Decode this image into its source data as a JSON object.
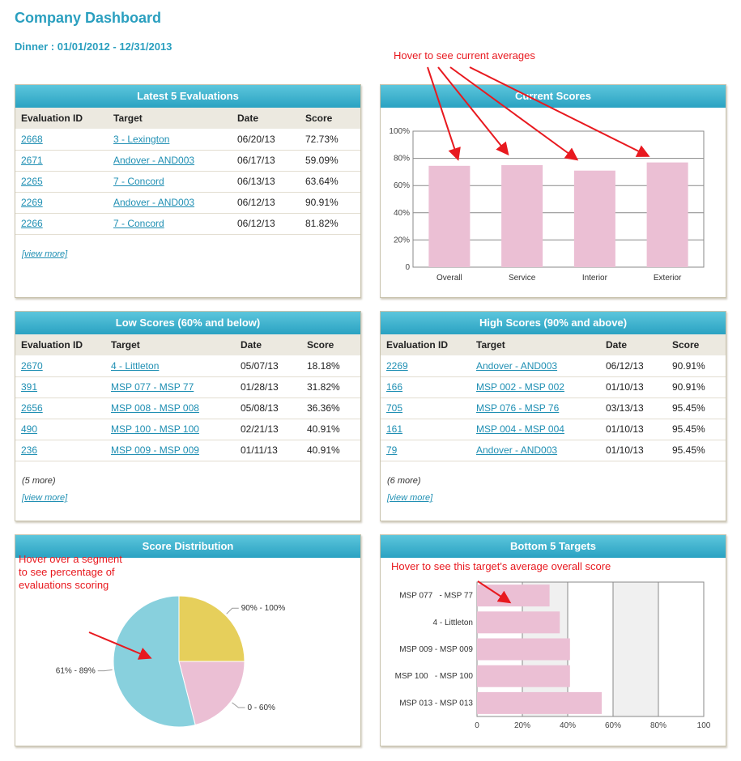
{
  "header": {
    "title": "Company Dashboard",
    "subtitle": "Dinner : 01/01/2012 - 12/31/2013"
  },
  "latest": {
    "title": "Latest 5 Evaluations",
    "columns": [
      "Evaluation ID",
      "Target",
      "Date",
      "Score"
    ],
    "rows": [
      [
        "2668",
        "3 - Lexington",
        "06/20/13",
        "72.73%"
      ],
      [
        "2671",
        "Andover - AND003",
        "06/17/13",
        "59.09%"
      ],
      [
        "2265",
        "7 - Concord",
        "06/13/13",
        "63.64%"
      ],
      [
        "2269",
        "Andover - AND003",
        "06/12/13",
        "90.91%"
      ],
      [
        "2266",
        "7 - Concord",
        "06/12/13",
        "81.82%"
      ]
    ],
    "view_more": "[view more]"
  },
  "current_scores": {
    "title": "Current Scores",
    "annotation": "Hover to see current averages"
  },
  "low": {
    "title": "Low Scores (60% and below)",
    "columns": [
      "Evaluation ID",
      "Target",
      "Date",
      "Score"
    ],
    "rows": [
      [
        "2670",
        "4 - Littleton",
        "05/07/13",
        "18.18%"
      ],
      [
        "391",
        "MSP 077 - MSP 77",
        "01/28/13",
        "31.82%"
      ],
      [
        "2656",
        "MSP 008 - MSP 008",
        "05/08/13",
        "36.36%"
      ],
      [
        "490",
        "MSP 100 - MSP 100",
        "02/21/13",
        "40.91%"
      ],
      [
        "236",
        "MSP 009 - MSP 009",
        "01/11/13",
        "40.91%"
      ]
    ],
    "more": "(5 more)",
    "view_more": "[view more]"
  },
  "high": {
    "title": "High Scores (90% and above)",
    "columns": [
      "Evaluation ID",
      "Target",
      "Date",
      "Score"
    ],
    "rows": [
      [
        "2269",
        "Andover - AND003",
        "06/12/13",
        "90.91%"
      ],
      [
        "166",
        "MSP 002 - MSP 002",
        "01/10/13",
        "90.91%"
      ],
      [
        "705",
        "MSP 076 - MSP 76",
        "03/13/13",
        "95.45%"
      ],
      [
        "161",
        "MSP 004 - MSP 004",
        "01/10/13",
        "95.45%"
      ],
      [
        "79",
        "Andover - AND003",
        "01/10/13",
        "95.45%"
      ]
    ],
    "more": "(6 more)",
    "view_more": "[view more]"
  },
  "distribution": {
    "title": "Score Distribution",
    "annotation": "Hover over a segment to see percentage of evaluations scoring"
  },
  "bottom": {
    "title": "Bottom 5 Targets",
    "annotation": "Hover to see this target's average overall score"
  },
  "colors": {
    "accent": "#2a9fbf",
    "bar": "#ebbfd4",
    "pie_blue": "#88d0dd",
    "pie_yellow": "#e6cf5b",
    "pie_pink": "#ebbfd4",
    "annotation": "#e8191f"
  },
  "chart_data": [
    {
      "type": "bar",
      "categories": [
        "Overall",
        "Service",
        "Interior",
        "Exterior"
      ],
      "values": [
        74.5,
        75,
        71,
        77
      ],
      "ylim": [
        0,
        100
      ],
      "yticks": [
        "0",
        "20%",
        "40%",
        "60%",
        "80%",
        "100%"
      ],
      "grid": true
    },
    {
      "type": "pie",
      "labels": [
        "90% - 100%",
        "0 - 60%",
        "61% - 89%"
      ],
      "values": [
        25,
        21,
        54
      ]
    },
    {
      "type": "bar",
      "orientation": "horizontal",
      "categories": [
        "MSP 077   - MSP 77",
        "4 - Littleton",
        "MSP 009 - MSP 009",
        "MSP 100   - MSP 100",
        "MSP 013 - MSP 013"
      ],
      "values": [
        32,
        36.5,
        41,
        41,
        55
      ],
      "xlim": [
        0,
        100
      ],
      "xticks": [
        "0",
        "20%",
        "40%",
        "60%",
        "80%",
        "100"
      ],
      "grid": true
    }
  ]
}
